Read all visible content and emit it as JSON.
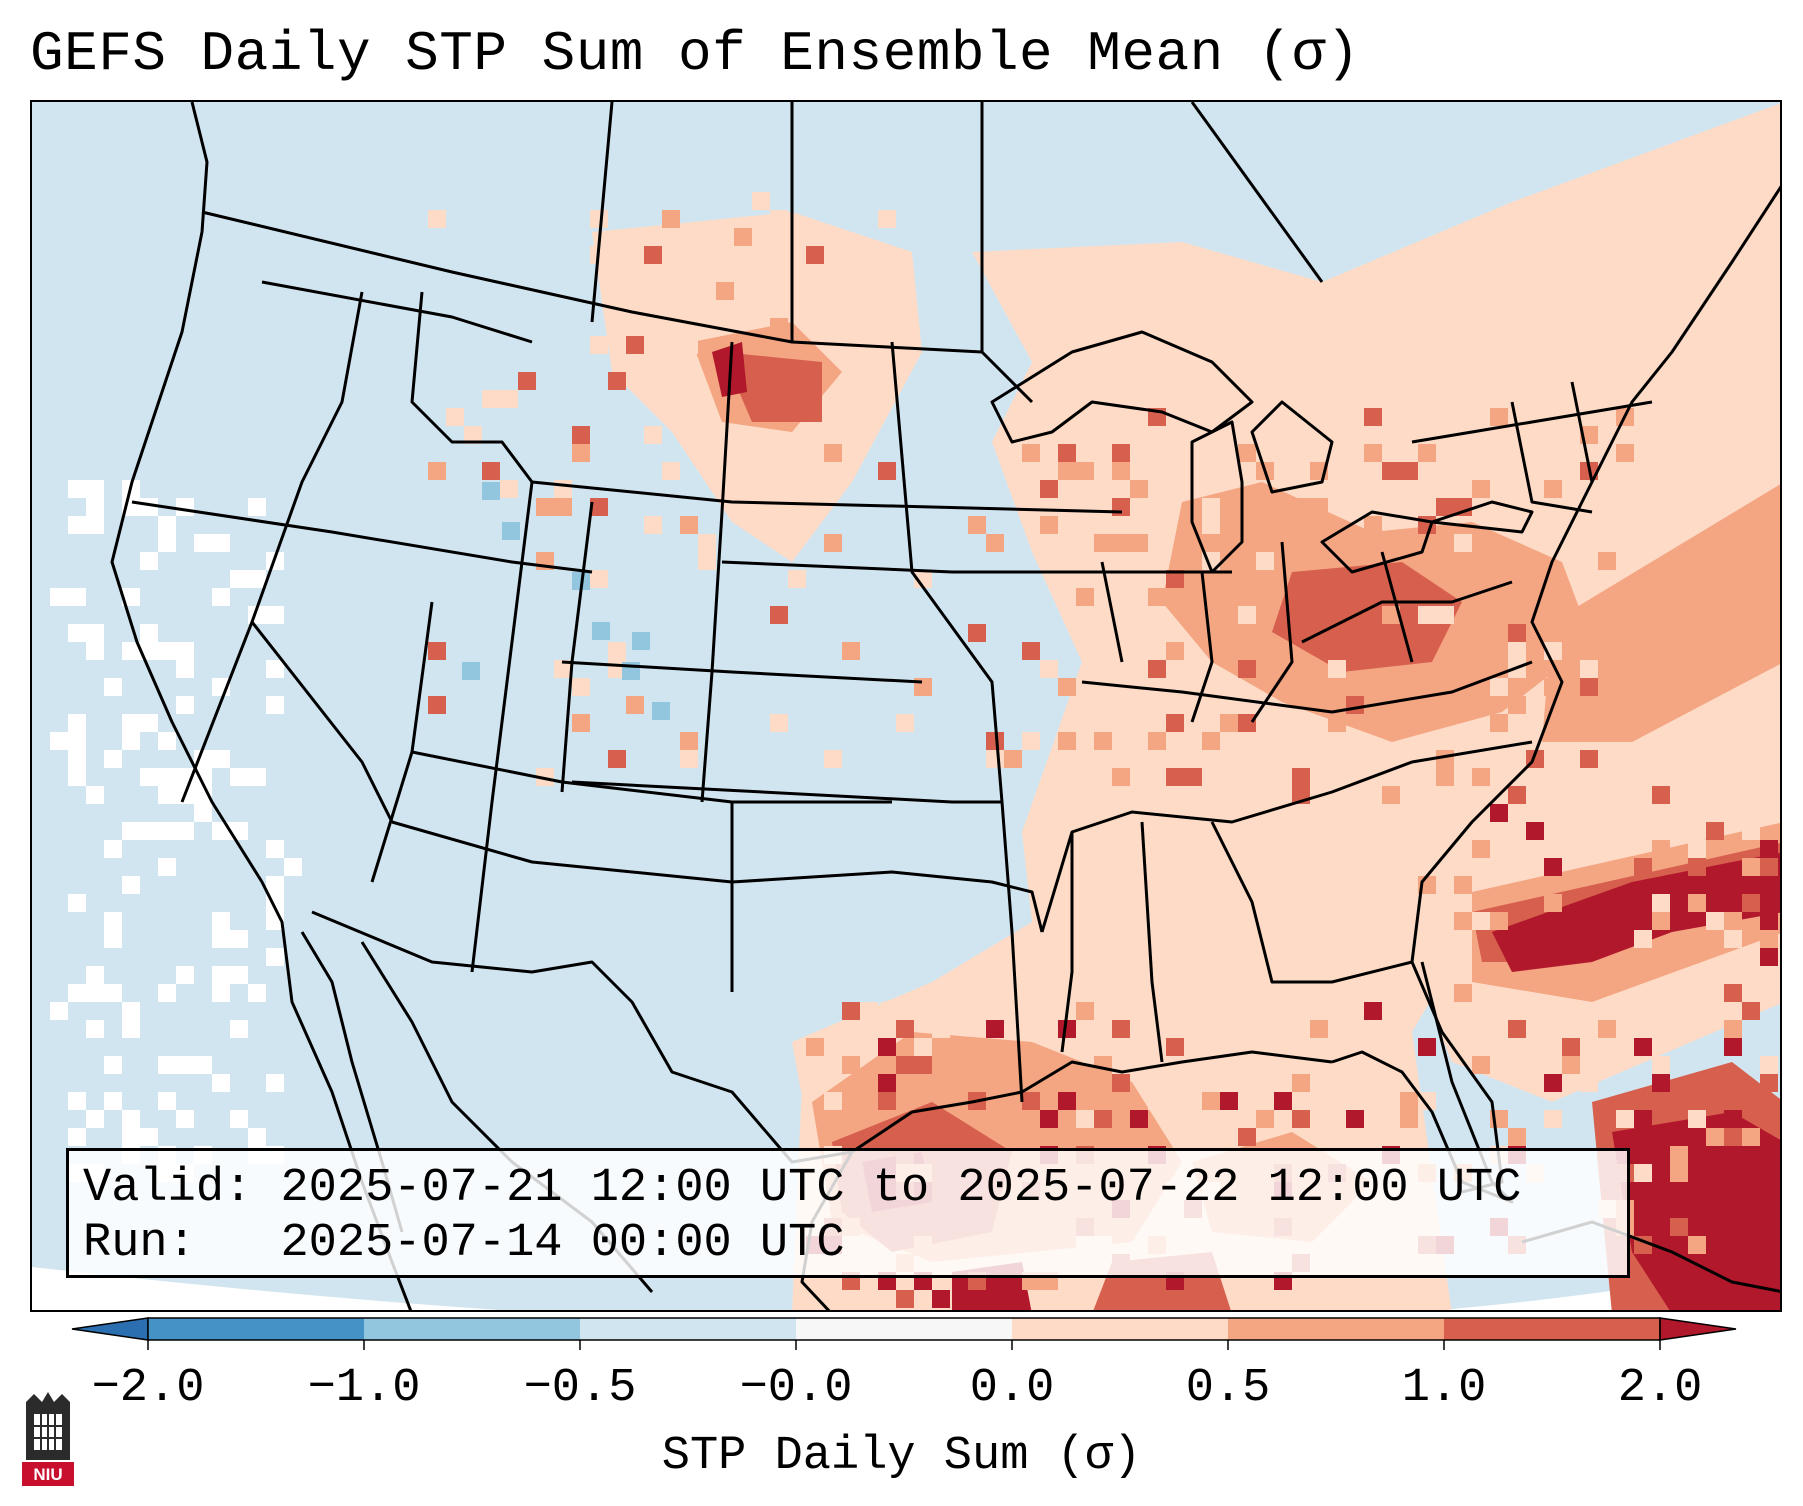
{
  "title": "GEFS Daily STP Sum of Ensemble Mean (σ)",
  "info": {
    "valid_label": "Valid:",
    "valid_value": "2025-07-21 12:00 UTC to 2025-07-22 12:00 UTC",
    "run_label": "Run:",
    "run_value": "2025-07-14 00:00 UTC"
  },
  "colorbar": {
    "label": "STP Daily Sum (σ)",
    "ticks": [
      "−2.0",
      "−1.0",
      "−0.5",
      "−0.0",
      "0.0",
      "0.5",
      "1.0",
      "2.0"
    ],
    "bins": [
      {
        "range": "<-2.0",
        "color": "#2c6fb0"
      },
      {
        "range": "-2.0 to -1.0",
        "color": "#4592c6"
      },
      {
        "range": "-1.0 to -0.5",
        "color": "#92c5de"
      },
      {
        "range": "-0.5 to -0.0",
        "color": "#d1e5f0"
      },
      {
        "range": "-0.0 to 0.0",
        "color": "#f7f7f7"
      },
      {
        "range": "0.0 to 0.5",
        "color": "#fddbc7"
      },
      {
        "range": "0.5 to 1.0",
        "color": "#f4a582"
      },
      {
        "range": "1.0 to 2.0",
        "color": "#d6604d"
      },
      {
        "range": ">2.0",
        "color": "#b2182b"
      }
    ]
  },
  "logo": {
    "text": "NIU",
    "color": "#c8102e"
  },
  "colors": {
    "background": "#d1e5f0",
    "light_pos": "#fddbc7",
    "mid_pos": "#f4a582",
    "strong_pos": "#d6604d",
    "extreme_pos": "#b2182b",
    "light_neg": "#92c5de",
    "neutral": "#ffffff"
  }
}
